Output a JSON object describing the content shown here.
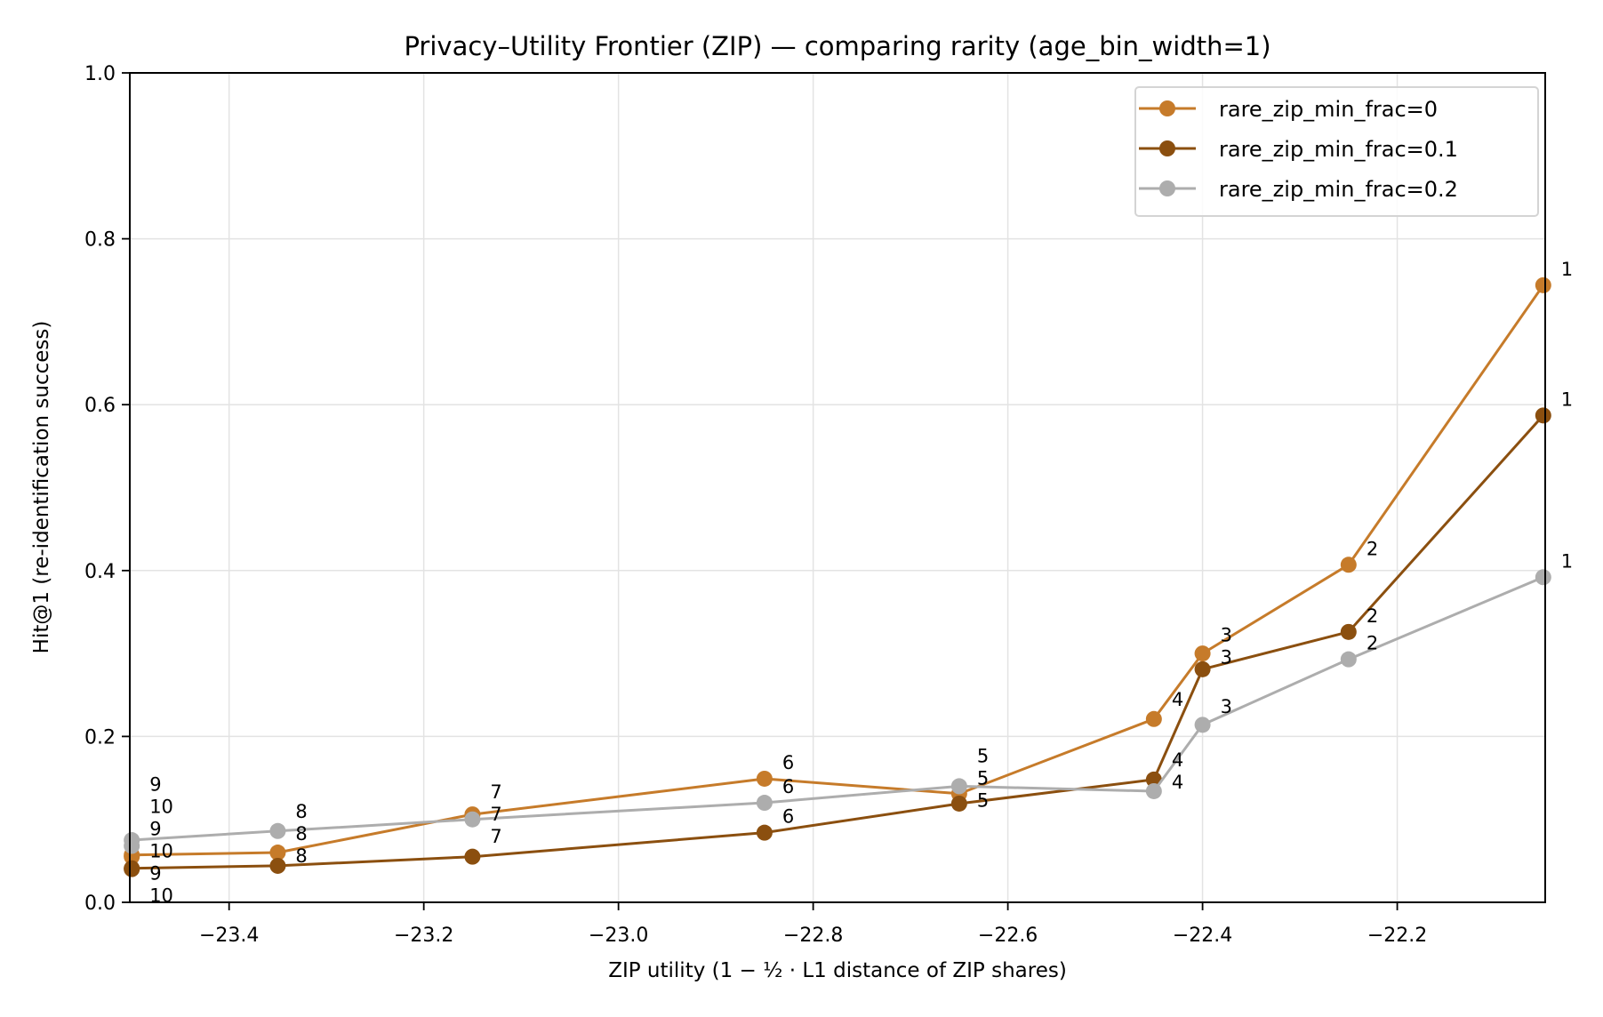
{
  "chart_data": {
    "type": "line",
    "title": "Privacy–Utility Frontier (ZIP) — comparing rarity (age_bin_width=1)",
    "xlabel": "ZIP utility (1 − ½ · L1 distance of ZIP shares)",
    "ylabel": "Hit@1 (re-identification success)",
    "xlim": [
      -23.502,
      -22.048
    ],
    "ylim": [
      0.0,
      1.0
    ],
    "xticks": [
      -23.4,
      -23.2,
      -23.0,
      -22.8,
      -22.6,
      -22.4,
      -22.2
    ],
    "xtick_labels": [
      "−23.4",
      "−23.2",
      "−23.0",
      "−22.8",
      "−22.6",
      "−22.4",
      "−22.2"
    ],
    "yticks": [
      0.0,
      0.2,
      0.4,
      0.6,
      0.8,
      1.0
    ],
    "ytick_labels": [
      "0.0",
      "0.2",
      "0.4",
      "0.6",
      "0.8",
      "1.0"
    ],
    "grid": true,
    "legend_position": "top-right",
    "series": [
      {
        "name": "rare_zip_min_frac=0",
        "color": "#C67B2A",
        "point_labels": [
          "1",
          "2",
          "3",
          "4",
          "5",
          "6",
          "7",
          "8",
          "9",
          "10"
        ],
        "x": [
          -22.05,
          -22.25,
          -22.4,
          -22.45,
          -22.65,
          -22.85,
          -23.15,
          -23.35,
          -23.5,
          -23.5
        ],
        "y": [
          0.744,
          0.407,
          0.3,
          0.221,
          0.131,
          0.149,
          0.106,
          0.06,
          0.057,
          0.055
        ]
      },
      {
        "name": "rare_zip_min_frac=0.1",
        "color": "#8B4F0F",
        "point_labels": [
          "1",
          "2",
          "3",
          "4",
          "5",
          "6",
          "7",
          "8",
          "9",
          "10"
        ],
        "x": [
          -22.05,
          -22.25,
          -22.4,
          -22.45,
          -22.65,
          -22.85,
          -23.15,
          -23.35,
          -23.5,
          -23.5
        ],
        "y": [
          0.587,
          0.326,
          0.281,
          0.148,
          0.119,
          0.084,
          0.055,
          0.044,
          0.041,
          0.04
        ]
      },
      {
        "name": "rare_zip_min_frac=0.2",
        "color": "#ADADAD",
        "point_labels": [
          "1",
          "2",
          "3",
          "4",
          "5",
          "6",
          "7",
          "8",
          "9",
          "10"
        ],
        "x": [
          -22.05,
          -22.25,
          -22.4,
          -22.45,
          -22.65,
          -22.85,
          -23.15,
          -23.35,
          -23.5,
          -23.5
        ],
        "y": [
          0.392,
          0.293,
          0.214,
          0.134,
          0.14,
          0.12,
          0.1,
          0.086,
          0.075,
          0.068
        ]
      }
    ]
  }
}
